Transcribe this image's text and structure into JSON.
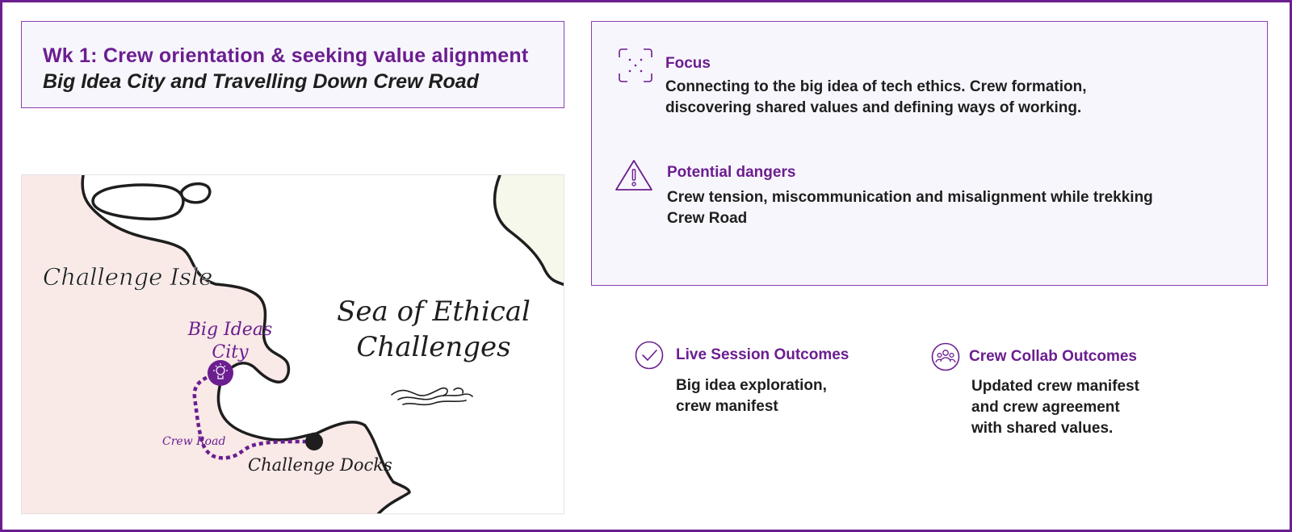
{
  "header": {
    "title": "Wk 1: Crew orientation & seeking value alignment",
    "subtitle": "Big Idea City and Travelling Down Crew Road"
  },
  "focus": {
    "label": "Focus",
    "text": "Connecting to the big idea of tech ethics. Crew formation, discovering shared values and defining ways of working.",
    "icon": "focus-frame-icon"
  },
  "dangers": {
    "label": "Potential dangers",
    "text": "Crew tension, miscommunication and misalignment while trekking Crew Road",
    "icon": "warning-icon"
  },
  "map": {
    "island_label": "Challenge Isle",
    "sea_label_line1": "Sea of Ethical",
    "sea_label_line2": "Challenges",
    "city_label_line1": "Big Ideas",
    "city_label_line2": "City",
    "road_label": "Crew Road",
    "docks_label": "Challenge Docks"
  },
  "outcomes": {
    "live": {
      "label": "Live Session Outcomes",
      "text": "Big idea exploration,\ncrew manifest",
      "icon": "check-circle-icon"
    },
    "collab": {
      "label": "Crew Collab Outcomes",
      "text": "Updated crew manifest\nand crew agreement\nwith shared values.",
      "icon": "group-icon"
    }
  },
  "colors": {
    "accent": "#6b1e8f",
    "land": "#f9e9e7",
    "far_land": "#f6f8ec",
    "panel": "#f8f6fd",
    "text": "#1e1e1e"
  }
}
